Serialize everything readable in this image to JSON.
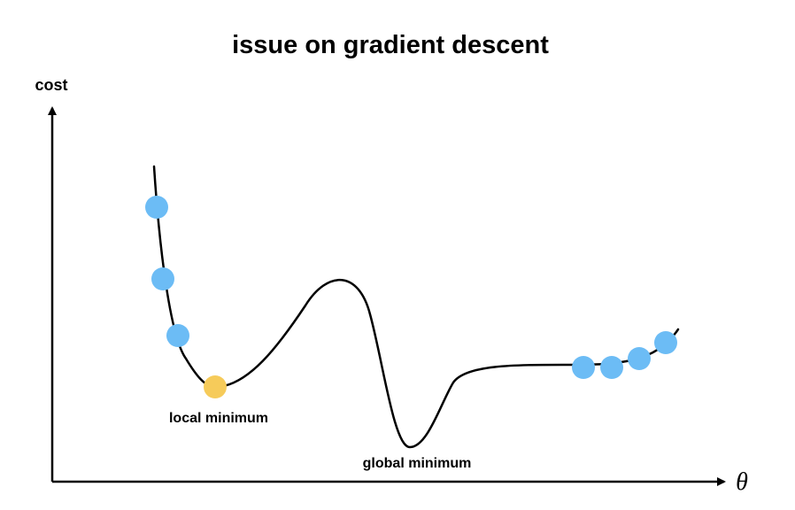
{
  "title": "issue on gradient descent",
  "y_axis_label": "cost",
  "x_axis_label": "θ",
  "annotations": {
    "local_minimum": "local minimum",
    "global_minimum": "global minimum"
  },
  "colors": {
    "curve": "#000000",
    "axis": "#000000",
    "descent_point": "#6cbcf5",
    "stuck_point": "#f6cb5a"
  },
  "point_groups": [
    {
      "role": "descent-steps-left",
      "count": 3,
      "color": "#6cbcf5"
    },
    {
      "role": "stuck-at-local-minimum",
      "count": 1,
      "color": "#f6cb5a"
    },
    {
      "role": "plateau-steps-right",
      "count": 4,
      "color": "#6cbcf5"
    }
  ]
}
